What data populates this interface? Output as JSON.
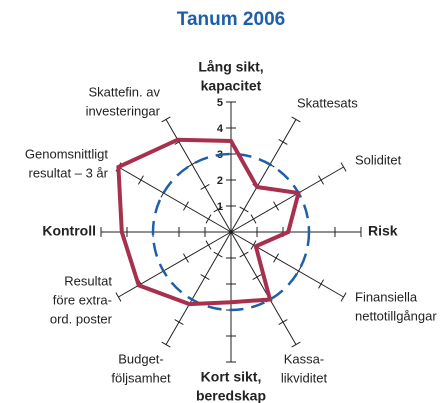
{
  "chart_data": {
    "type": "radar",
    "title": "Tanum 2006",
    "labels": [
      [
        "Lång sikt,",
        "kapacitet"
      ],
      [
        "Skattesats"
      ],
      [
        "Soliditet"
      ],
      [
        "Risk"
      ],
      [
        "Finansiella",
        "nettotillgångar"
      ],
      [
        "Kassa-",
        "likviditet"
      ],
      [
        "Kort sikt,",
        "beredskap"
      ],
      [
        "Budget-",
        "följsamhet"
      ],
      [
        "Resultat",
        "före extra-",
        "ord. poster"
      ],
      [
        "Kontroll"
      ],
      [
        "Genomsnittligt",
        "resultat – 3 år"
      ],
      [
        "Skattefin. av",
        "investeringar"
      ]
    ],
    "values": [
      3.5,
      2.0,
      3.0,
      2.2,
      1.1,
      3.0,
      2.7,
      3.2,
      4.1,
      4.2,
      5.0,
      4.1
    ],
    "color": "#a8304f",
    "rlim": [
      0,
      5
    ],
    "rticks": [
      1,
      2,
      3,
      4,
      5
    ],
    "reference_ring": 3,
    "reference_color": "#1f5fa8"
  }
}
